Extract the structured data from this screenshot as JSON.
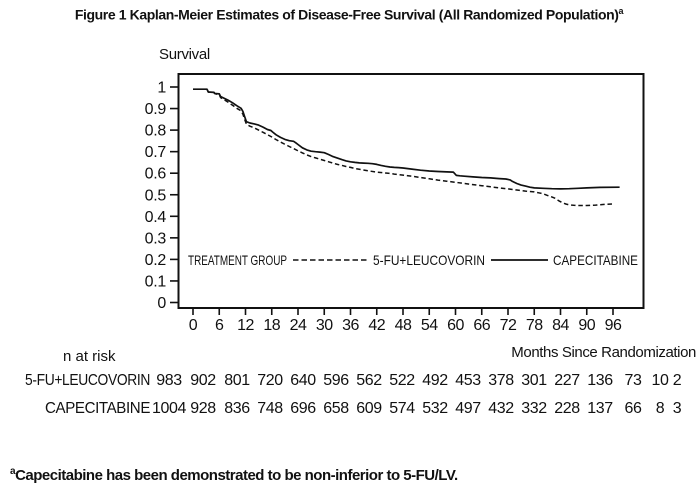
{
  "figure": {
    "title": "Figure 1 Kaplan-Meier Estimates of Disease-Free Survival (All Randomized Population)",
    "title_superscript": "a",
    "footnote_superscript": "a",
    "footnote": "Capecitabine has been demonstrated to be non-inferior to 5-FU/LV."
  },
  "colors": {
    "line": "#111111",
    "text": "#111111",
    "background": "#ffffff"
  },
  "chart_data": {
    "type": "line",
    "subtype": "kaplan-meier-step",
    "title": "Figure 1 Kaplan-Meier Estimates of Disease-Free Survival (All Randomized Population)",
    "ylabel": "Survival",
    "xlabel": "Months Since Randomization",
    "ylim": [
      0,
      1.05
    ],
    "xlim": [
      0,
      103
    ],
    "grid": false,
    "y_ticks": [
      1,
      0.9,
      0.8,
      0.7,
      0.6,
      0.5,
      0.4,
      0.3,
      0.2,
      0.1,
      0
    ],
    "y_tick_labels": [
      "1",
      "0.9",
      "0.8",
      "0.7",
      "0.6",
      "0.5",
      "0.4",
      "0.3",
      "0.2",
      "0.1",
      "0"
    ],
    "x_ticks": [
      0,
      6,
      12,
      18,
      24,
      30,
      36,
      42,
      48,
      54,
      60,
      66,
      72,
      78,
      84,
      90,
      96
    ],
    "x_tick_labels": [
      "0",
      "6",
      "12",
      "18",
      "24",
      "30",
      "36",
      "42",
      "48",
      "54",
      "60",
      "66",
      "72",
      "78",
      "84",
      "90",
      "96"
    ],
    "legend": {
      "position": "inside-bottom",
      "title": "TREATMENT GROUP",
      "entries": [
        {
          "label": "5-FU+LEUCOVORIN",
          "style": "dashed"
        },
        {
          "label": "CAPECITABINE",
          "style": "solid"
        }
      ]
    },
    "series": [
      {
        "name": "5-FU+LEUCOVORIN",
        "style": "dashed",
        "points": [
          [
            0,
            0.99
          ],
          [
            3.2,
            0.99
          ],
          [
            3.5,
            0.977
          ],
          [
            4.8,
            0.974
          ],
          [
            5,
            0.969
          ],
          [
            6,
            0.964
          ],
          [
            6.3,
            0.951
          ],
          [
            7,
            0.943
          ],
          [
            8,
            0.93
          ],
          [
            9,
            0.916
          ],
          [
            10,
            0.901
          ],
          [
            11,
            0.889
          ],
          [
            11.4,
            0.874
          ],
          [
            11.8,
            0.85
          ],
          [
            12.2,
            0.828
          ],
          [
            13,
            0.818
          ],
          [
            14,
            0.81
          ],
          [
            15,
            0.8
          ],
          [
            16,
            0.79
          ],
          [
            17,
            0.779
          ],
          [
            18,
            0.768
          ],
          [
            19,
            0.756
          ],
          [
            20,
            0.745
          ],
          [
            21,
            0.734
          ],
          [
            22,
            0.724
          ],
          [
            23,
            0.714
          ],
          [
            24,
            0.704
          ],
          [
            25,
            0.694
          ],
          [
            26,
            0.685
          ],
          [
            27,
            0.677
          ],
          [
            28,
            0.671
          ],
          [
            29,
            0.665
          ],
          [
            30,
            0.659
          ],
          [
            31,
            0.653
          ],
          [
            32,
            0.647
          ],
          [
            33,
            0.641
          ],
          [
            34,
            0.636
          ],
          [
            35,
            0.631
          ],
          [
            36,
            0.627
          ],
          [
            37,
            0.622
          ],
          [
            38,
            0.618
          ],
          [
            40,
            0.611
          ],
          [
            42,
            0.605
          ],
          [
            44,
            0.601
          ],
          [
            45,
            0.599
          ],
          [
            46,
            0.596
          ],
          [
            48,
            0.591
          ],
          [
            50,
            0.586
          ],
          [
            52,
            0.58
          ],
          [
            54,
            0.574
          ],
          [
            56,
            0.568
          ],
          [
            58,
            0.563
          ],
          [
            60,
            0.558
          ],
          [
            62,
            0.552
          ],
          [
            64,
            0.547
          ],
          [
            66,
            0.542
          ],
          [
            68,
            0.537
          ],
          [
            70,
            0.532
          ],
          [
            72,
            0.527
          ],
          [
            74,
            0.522
          ],
          [
            76,
            0.517
          ],
          [
            78,
            0.513
          ],
          [
            79,
            0.509
          ],
          [
            80,
            0.505
          ],
          [
            81,
            0.497
          ],
          [
            82,
            0.49
          ],
          [
            82.8,
            0.483
          ],
          [
            83.6,
            0.472
          ],
          [
            84.4,
            0.463
          ],
          [
            85.2,
            0.457
          ],
          [
            86,
            0.453
          ],
          [
            87,
            0.451
          ],
          [
            88,
            0.45
          ],
          [
            90,
            0.45
          ],
          [
            92,
            0.452
          ],
          [
            94,
            0.455
          ],
          [
            96,
            0.457
          ]
        ]
      },
      {
        "name": "CAPECITABINE",
        "style": "solid",
        "points": [
          [
            0,
            0.99
          ],
          [
            3.2,
            0.99
          ],
          [
            3.5,
            0.977
          ],
          [
            4.8,
            0.975
          ],
          [
            5,
            0.97
          ],
          [
            6,
            0.968
          ],
          [
            6.3,
            0.956
          ],
          [
            7,
            0.949
          ],
          [
            8,
            0.939
          ],
          [
            9,
            0.927
          ],
          [
            10,
            0.913
          ],
          [
            11,
            0.901
          ],
          [
            11.4,
            0.887
          ],
          [
            11.8,
            0.863
          ],
          [
            12.2,
            0.839
          ],
          [
            13,
            0.833
          ],
          [
            14,
            0.829
          ],
          [
            15,
            0.823
          ],
          [
            16,
            0.814
          ],
          [
            17,
            0.803
          ],
          [
            17.8,
            0.798
          ],
          [
            18.2,
            0.791
          ],
          [
            19,
            0.778
          ],
          [
            20,
            0.766
          ],
          [
            21,
            0.757
          ],
          [
            22,
            0.751
          ],
          [
            23,
            0.748
          ],
          [
            23.5,
            0.741
          ],
          [
            24,
            0.733
          ],
          [
            25,
            0.718
          ],
          [
            26,
            0.708
          ],
          [
            27,
            0.702
          ],
          [
            28,
            0.7
          ],
          [
            29,
            0.698
          ],
          [
            30,
            0.695
          ],
          [
            31,
            0.687
          ],
          [
            32,
            0.677
          ],
          [
            33,
            0.67
          ],
          [
            34,
            0.663
          ],
          [
            35,
            0.657
          ],
          [
            36,
            0.653
          ],
          [
            37,
            0.65
          ],
          [
            38,
            0.648
          ],
          [
            39,
            0.647
          ],
          [
            40,
            0.646
          ],
          [
            41,
            0.644
          ],
          [
            42,
            0.641
          ],
          [
            43,
            0.636
          ],
          [
            44,
            0.632
          ],
          [
            45,
            0.629
          ],
          [
            46,
            0.627
          ],
          [
            47,
            0.626
          ],
          [
            48,
            0.624
          ],
          [
            50,
            0.619
          ],
          [
            52,
            0.614
          ],
          [
            54,
            0.61
          ],
          [
            56,
            0.608
          ],
          [
            58,
            0.606
          ],
          [
            59.5,
            0.605
          ],
          [
            60.2,
            0.59
          ],
          [
            61,
            0.588
          ],
          [
            62,
            0.586
          ],
          [
            64,
            0.583
          ],
          [
            66,
            0.58
          ],
          [
            68,
            0.578
          ],
          [
            70,
            0.575
          ],
          [
            71.5,
            0.573
          ],
          [
            72.5,
            0.569
          ],
          [
            73,
            0.562
          ],
          [
            74,
            0.552
          ],
          [
            75,
            0.545
          ],
          [
            76,
            0.54
          ],
          [
            77,
            0.535
          ],
          [
            78,
            0.532
          ],
          [
            80,
            0.53
          ],
          [
            82,
            0.528
          ],
          [
            84,
            0.527
          ],
          [
            86,
            0.528
          ],
          [
            88,
            0.53
          ],
          [
            90,
            0.532
          ],
          [
            93,
            0.534
          ],
          [
            97.5,
            0.535
          ]
        ]
      }
    ]
  },
  "risk_table": {
    "label": "n at risk",
    "rows": [
      {
        "name": "5-FU+LEUCOVORIN",
        "values": [
          "983",
          "902",
          "801",
          "720",
          "640",
          "596",
          "562",
          "522",
          "492",
          "453",
          "378",
          "301",
          "227",
          "136",
          "73",
          "10",
          "2"
        ]
      },
      {
        "name": "CAPECITABINE",
        "values": [
          "1004",
          "928",
          "836",
          "748",
          "696",
          "658",
          "609",
          "574",
          "532",
          "497",
          "432",
          "332",
          "228",
          "137",
          "66",
          "8",
          "3"
        ]
      }
    ]
  }
}
